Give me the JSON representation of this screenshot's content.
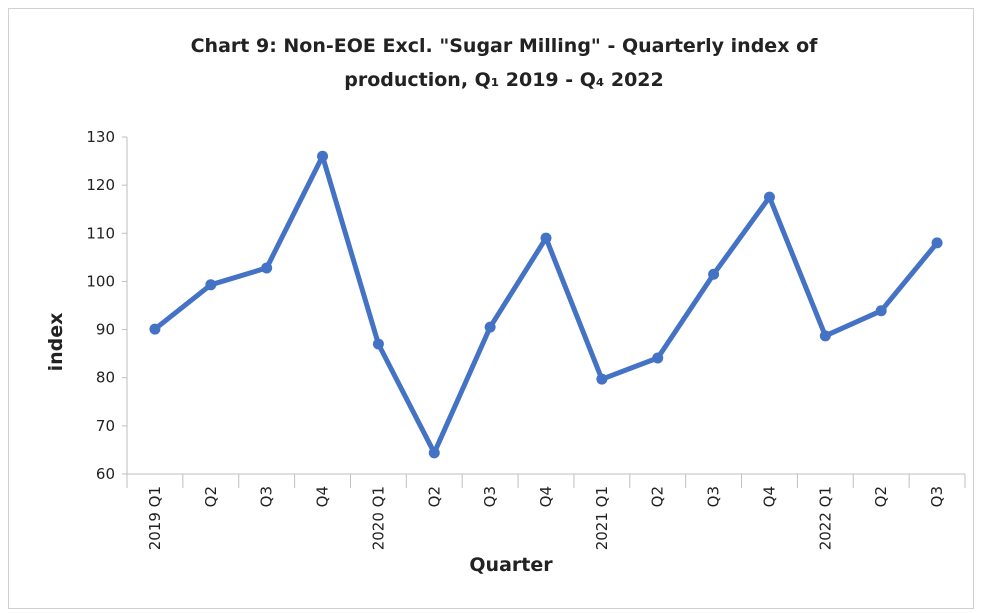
{
  "chart_data": {
    "type": "line",
    "title": [
      "Chart 9: Non-EOE Excl. \"Sugar Milling\" - Quarterly index of",
      "production, Q₁ 2019 - Q₄ 2022"
    ],
    "x_label": "Quarter",
    "y_label": "index",
    "categories": [
      "2019 Q1",
      "Q2",
      "Q3",
      "Q4",
      "2020 Q1",
      "Q2",
      "Q3",
      "Q4",
      "2021 Q1",
      "Q2",
      "Q3",
      "Q4",
      "2022 Q1",
      "Q2",
      "Q3"
    ],
    "series": [
      {
        "name": "index",
        "color": "#4472c4",
        "values": [
          90.1,
          99.3,
          102.8,
          126,
          87,
          64.4,
          90.5,
          109,
          79.7,
          84.1,
          101.5,
          117.5,
          88.7,
          93.9,
          108
        ]
      }
    ],
    "ylim": [
      60,
      130
    ],
    "yticks": [
      60,
      70,
      80,
      90,
      100,
      110,
      120,
      130
    ],
    "grid": false
  }
}
